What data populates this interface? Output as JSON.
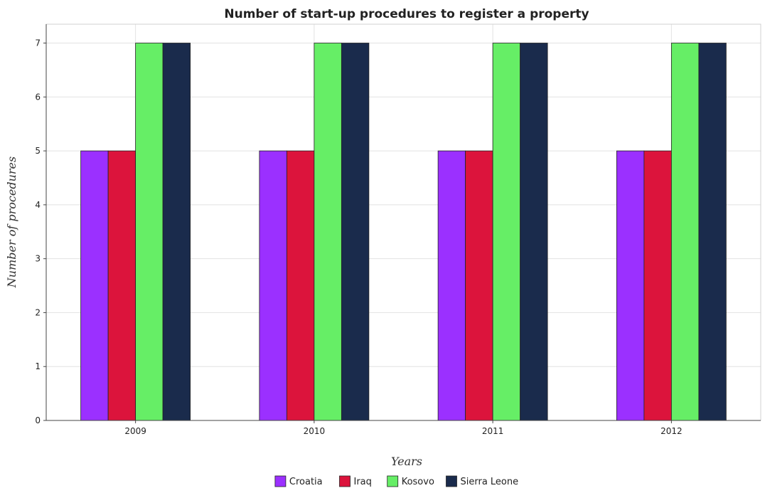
{
  "chart_data": {
    "type": "bar",
    "title": "Number of start-up procedures to register a property",
    "xlabel": "Years",
    "ylabel": "Number of procedures",
    "categories": [
      "2009",
      "2010",
      "2011",
      "2012"
    ],
    "series": [
      {
        "name": "Croatia",
        "color": "#9b30ff",
        "values": [
          5,
          5,
          5,
          5
        ]
      },
      {
        "name": "Iraq",
        "color": "#dc143c",
        "values": [
          5,
          5,
          5,
          5
        ]
      },
      {
        "name": "Kosovo",
        "color": "#66ee66",
        "values": [
          7,
          7,
          7,
          7
        ]
      },
      {
        "name": "Sierra Leone",
        "color": "#1a2b4c",
        "values": [
          7,
          7,
          7,
          7
        ]
      }
    ],
    "ylim": [
      0,
      7.35
    ],
    "yticks": [
      "0",
      "1",
      "2",
      "3",
      "4",
      "5",
      "6",
      "7"
    ],
    "grid": true,
    "legend_position": "bottom"
  }
}
